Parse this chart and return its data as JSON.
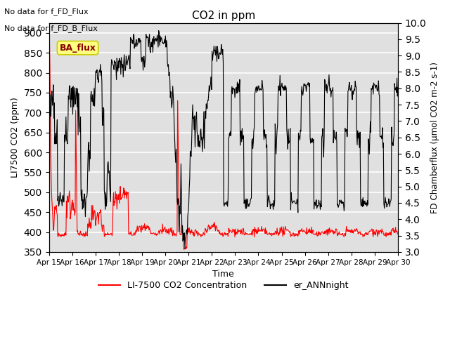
{
  "title": "CO2 in ppm",
  "xlabel": "Time",
  "ylabel_left": "LI7500 CO2 (ppm)",
  "ylabel_right": "FD Chamberflux (μmol CO2 m-2 s-1)",
  "text_no_data_1": "No data for f_FD_Flux",
  "text_no_data_2": "No data for f_FD_B_Flux",
  "annotation_ba_flux": "BA_flux",
  "ylim_left": [
    350,
    925
  ],
  "ylim_right": [
    3.0,
    10.0
  ],
  "yticks_left": [
    350,
    400,
    450,
    500,
    550,
    600,
    650,
    700,
    750,
    800,
    850,
    900
  ],
  "yticks_right": [
    3.0,
    3.5,
    4.0,
    4.5,
    5.0,
    5.5,
    6.0,
    6.5,
    7.0,
    7.5,
    8.0,
    8.5,
    9.0,
    9.5,
    10.0
  ],
  "xtick_labels": [
    "Apr 15",
    "Apr 16",
    "Apr 17",
    "Apr 18",
    "Apr 19",
    "Apr 20",
    "Apr 21",
    "Apr 22",
    "Apr 23",
    "Apr 24",
    "Apr 25",
    "Apr 26",
    "Apr 27",
    "Apr 28",
    "Apr 29",
    "Apr 30"
  ],
  "legend_entries": [
    "LI-7500 CO2 Concentration",
    "er_ANNnight"
  ],
  "bg_color": "#e8e8e8",
  "plot_bg_color": "#e0e0e0",
  "grid_color": "white",
  "seed": 42
}
